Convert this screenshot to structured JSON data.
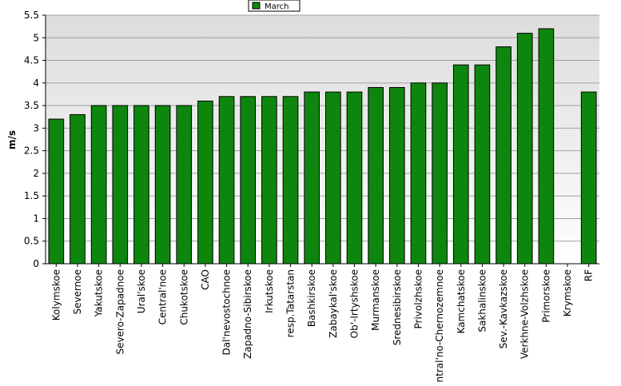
{
  "chart_data": {
    "type": "bar",
    "title": "",
    "xlabel": "",
    "ylabel": "m/s",
    "ylim": [
      0,
      5.5
    ],
    "yticks": [
      0,
      0.5,
      1,
      1.5,
      2,
      2.5,
      3,
      3.5,
      4,
      4.5,
      5,
      5.5
    ],
    "grid": true,
    "legend_position": "top-center",
    "categories": [
      "Kolymskoe",
      "Severnoe",
      "Yakutskoe",
      "Severo-Zapadnoe",
      "Ural'skoe",
      "Central'noe",
      "Chukotskoe",
      "CAO",
      "Dal'nevostochnoe",
      "Zapadno-Sibirskoe",
      "Irkutskoe",
      "resp.Tatarstan",
      "Bashkirskoe",
      "Zabaykal'skoe",
      "Ob'-Irtyshskoe",
      "Murmanskoe",
      "Srednesibirskoe",
      "Privolzhskoe",
      "Central'no-Chernozemnoe",
      "Kamchatskoe",
      "Sakhalinskoe",
      "Sev.-Kavkazskoe",
      "Verkhne-Volzhskoe",
      "Primorskoe",
      "Krymskoe",
      "RF"
    ],
    "series": [
      {
        "name": "March",
        "values": [
          3.2,
          3.3,
          3.5,
          3.5,
          3.5,
          3.5,
          3.5,
          3.6,
          3.7,
          3.7,
          3.7,
          3.7,
          3.8,
          3.8,
          3.8,
          3.9,
          3.9,
          4.0,
          4.0,
          4.4,
          4.4,
          4.8,
          5.1,
          5.2,
          null,
          3.8
        ]
      }
    ],
    "colors": {
      "bar_fill": "#0e860e",
      "bar_stroke": "#000000",
      "plot_bg_top": "#dcdcdc",
      "plot_bg_bottom": "#ffffff",
      "grid": "#a0a0a0"
    }
  }
}
